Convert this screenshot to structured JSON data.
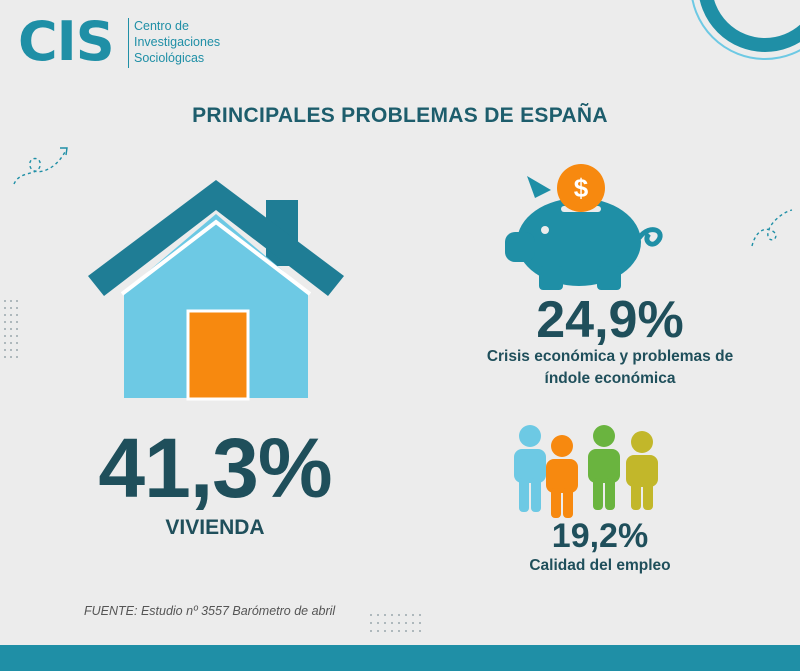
{
  "colors": {
    "teal": "#1f8fa6",
    "dark_teal": "#1f4f5b",
    "light_blue": "#6dc9e4",
    "orange": "#f7890f",
    "green": "#6ab43f",
    "yellow_green": "#c2b72a"
  },
  "logo": {
    "mark": "CIS",
    "line1": "Centro de",
    "line2": "Investigaciones",
    "line3": "Sociológicas"
  },
  "title": "PRINCIPALES PROBLEMAS DE ESPAÑA",
  "items": [
    {
      "value": "41,3%",
      "label": "VIVIENDA",
      "icon": "house-icon"
    },
    {
      "value": "24,9%",
      "label_line1": "Crisis económica y problemas de",
      "label_line2": "índole económica",
      "icon": "piggy-bank-icon",
      "coin_symbol": "$"
    },
    {
      "value": "19,2%",
      "label": "Calidad del empleo",
      "icon": "people-icon"
    }
  ],
  "source": "FUENTE: Estudio nº 3557 Barómetro de abril"
}
